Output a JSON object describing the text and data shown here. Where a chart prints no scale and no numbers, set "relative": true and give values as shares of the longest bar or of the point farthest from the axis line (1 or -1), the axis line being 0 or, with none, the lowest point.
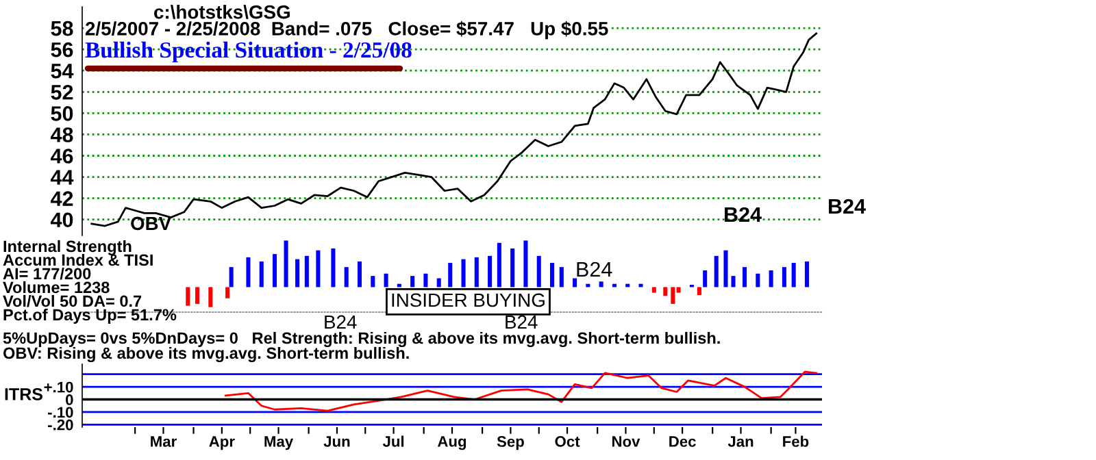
{
  "chart_data": [
    {
      "type": "line",
      "title": "c:\\hotstks\\GSG",
      "subtitle": "2/5/2007 - 2/25/2008  Band= .075   Close= $57.47   Up $0.55",
      "annotations": [
        "Bullish Special Situation - 2/25/08",
        "OBV",
        "B24",
        "B24"
      ],
      "x": [
        "2007-02-06",
        "2007-02-13",
        "2007-02-20",
        "2007-02-24",
        "2007-02-28",
        "2007-03-06",
        "2007-03-12",
        "2007-03-20",
        "2007-03-27",
        "2007-04-01",
        "2007-04-10",
        "2007-04-16",
        "2007-04-23",
        "2007-04-30",
        "2007-05-07",
        "2007-05-14",
        "2007-05-21",
        "2007-05-28",
        "2007-06-04",
        "2007-06-11",
        "2007-06-18",
        "2007-06-25",
        "2007-07-02",
        "2007-07-08",
        "2007-07-15",
        "2007-07-22",
        "2007-07-29",
        "2007-08-05",
        "2007-08-12",
        "2007-08-19",
        "2007-08-26",
        "2007-09-02",
        "2007-09-09",
        "2007-09-16",
        "2007-09-22",
        "2007-09-29",
        "2007-10-06",
        "2007-10-13",
        "2007-10-20",
        "2007-10-27",
        "2007-10-30",
        "2007-11-05",
        "2007-11-10",
        "2007-11-15",
        "2007-11-20",
        "2007-11-27",
        "2007-12-02",
        "2007-12-07",
        "2007-12-13",
        "2007-12-18",
        "2007-12-25",
        "2008-01-01",
        "2008-01-05",
        "2008-01-10",
        "2008-01-14",
        "2008-01-21",
        "2008-01-25",
        "2008-01-30",
        "2008-02-04",
        "2008-02-09",
        "2008-02-13",
        "2008-02-18",
        "2008-02-21",
        "2008-02-25"
      ],
      "series": [
        {
          "color": "#000000",
          "values": [
            39.6,
            39.4,
            39.8,
            41.1,
            40.9,
            40.6,
            40.6,
            40.2,
            40.7,
            41.9,
            41.7,
            41.1,
            41.7,
            42.1,
            41.1,
            41.3,
            41.9,
            41.5,
            42.3,
            42.2,
            43.0,
            42.7,
            42.1,
            43.6,
            44.0,
            44.4,
            44.2,
            44.0,
            42.7,
            42.9,
            41.7,
            42.3,
            43.6,
            45.5,
            46.3,
            47.5,
            46.9,
            47.3,
            48.8,
            49.0,
            50.5,
            51.3,
            52.8,
            52.4,
            51.3,
            53.2,
            51.5,
            50.2,
            49.9,
            51.7,
            51.7,
            53.2,
            54.8,
            53.6,
            52.6,
            51.7,
            50.4,
            52.4,
            52.2,
            52.0,
            54.4,
            55.7,
            56.9,
            57.5
          ]
        }
      ],
      "xlim": [
        "2007-02-01",
        "2008-02-28"
      ],
      "ylim": [
        38.5,
        60
      ],
      "yticks": [
        40,
        42,
        44,
        46,
        48,
        50,
        52,
        54,
        56,
        58
      ],
      "grid": "y",
      "tick_labels": "y"
    },
    {
      "type": "bar",
      "relative": true,
      "tick_labels": false,
      "annotations": [
        "Internal Strength",
        "Accum Index & TISI",
        "AI= 177/200",
        "Volume= 1238",
        "Vol/Vol 50 DA= 0.7",
        "Pct.of Days Up= 51.7%",
        "B24",
        "B24",
        "B24",
        "INSIDER BUYING"
      ],
      "x": [
        "2007-03-29",
        "2007-04-03",
        "2007-04-10",
        "2007-04-19",
        "2007-04-21",
        "2007-04-30",
        "2007-05-07",
        "2007-05-14",
        "2007-05-20",
        "2007-05-26",
        "2007-05-31",
        "2007-06-06",
        "2007-06-14",
        "2007-06-21",
        "2007-06-28",
        "2007-07-05",
        "2007-07-12",
        "2007-07-19",
        "2007-07-26",
        "2007-08-02",
        "2007-08-09",
        "2007-08-15",
        "2007-08-22",
        "2007-08-29",
        "2007-09-05",
        "2007-09-10",
        "2007-09-17",
        "2007-09-24",
        "2007-10-01",
        "2007-10-08",
        "2007-10-13",
        "2007-10-20",
        "2007-10-27",
        "2007-11-03",
        "2007-11-10",
        "2007-11-17",
        "2007-11-24",
        "2007-12-01",
        "2007-12-07",
        "2007-12-11",
        "2007-12-14",
        "2007-12-21",
        "2007-12-25",
        "2007-12-28",
        "2008-01-03",
        "2008-01-08",
        "2008-01-12",
        "2008-01-18",
        "2008-01-25",
        "2008-02-01",
        "2008-02-08",
        "2008-02-13",
        "2008-02-20"
      ],
      "values": [
        -0.4,
        -0.36,
        -0.43,
        -0.24,
        0.43,
        0.64,
        0.55,
        0.71,
        1,
        0.6,
        0.67,
        0.79,
        0.83,
        0.43,
        0.55,
        0.24,
        0.29,
        0.07,
        0.24,
        0.29,
        0.19,
        0.52,
        0.6,
        0.64,
        0.67,
        0.95,
        0.83,
        1,
        0.67,
        0.52,
        0.43,
        0.19,
        0.07,
        0.12,
        0.07,
        0.07,
        0.07,
        -0.12,
        -0.19,
        -0.36,
        -0.12,
        0.05,
        -0.17,
        0.36,
        0.67,
        0.79,
        0.24,
        0.43,
        0.29,
        0.36,
        0.43,
        0.52,
        0.55
      ],
      "colors": [
        "#ff0000",
        "#ff0000",
        "#ff0000",
        "#ff0000",
        "#0000ff",
        "#0000ff",
        "#0000ff",
        "#0000ff",
        "#0000ff",
        "#0000ff",
        "#0000ff",
        "#0000ff",
        "#0000ff",
        "#0000ff",
        "#0000ff",
        "#0000ff",
        "#0000ff",
        "#0000ff",
        "#0000ff",
        "#0000ff",
        "#0000ff",
        "#0000ff",
        "#0000ff",
        "#0000ff",
        "#0000ff",
        "#0000ff",
        "#0000ff",
        "#0000ff",
        "#0000ff",
        "#0000ff",
        "#0000ff",
        "#0000ff",
        "#0000ff",
        "#0000ff",
        "#0000ff",
        "#0000ff",
        "#0000ff",
        "#ff0000",
        "#ff0000",
        "#ff0000",
        "#ff0000",
        "#0000ff",
        "#ff0000",
        "#0000ff",
        "#0000ff",
        "#0000ff",
        "#0000ff",
        "#0000ff",
        "#0000ff",
        "#0000ff",
        "#0000ff",
        "#0000ff",
        "#0000ff"
      ],
      "xlim": [
        "2007-02-01",
        "2008-02-28"
      ]
    },
    {
      "type": "line",
      "ylabel": "ITRS",
      "annotations": [
        "5%UpDays= 0vs 5%DnDays= 0   Rel Strength: Rising & above its mvg.avg. Short-term bullish.",
        "OBV: Rising & above its mvg.avg. Short-term bullish."
      ],
      "x": [
        "2007-04-18",
        "2007-04-30",
        "2007-05-07",
        "2007-05-14",
        "2007-05-28",
        "2007-06-11",
        "2007-06-25",
        "2007-07-08",
        "2007-07-20",
        "2007-08-03",
        "2007-08-17",
        "2007-08-28",
        "2007-09-11",
        "2007-09-25",
        "2007-10-06",
        "2007-10-13",
        "2007-10-20",
        "2007-10-29",
        "2007-11-05",
        "2007-11-17",
        "2007-11-28",
        "2007-12-05",
        "2007-12-13",
        "2007-12-19",
        "2008-01-02",
        "2008-01-08",
        "2008-01-18",
        "2008-01-27",
        "2008-02-06",
        "2008-02-10",
        "2008-02-19",
        "2008-02-25"
      ],
      "series": [
        {
          "color": "#ff0000",
          "values": [
            0.03,
            0.05,
            -0.05,
            -0.08,
            -0.07,
            -0.09,
            -0.04,
            -0.01,
            0.02,
            0.07,
            0.02,
            0,
            0.07,
            0.08,
            0.04,
            -0.02,
            0.12,
            0.09,
            0.21,
            0.17,
            0.19,
            0.09,
            0.06,
            0.15,
            0.11,
            0.17,
            0.1,
            0.01,
            0.02,
            0.08,
            0.22,
            0.21
          ]
        }
      ],
      "xlim": [
        "2007-02-01",
        "2008-02-28"
      ],
      "ylim": [
        -0.22,
        0.28
      ],
      "yticks": [
        {
          "value": -0.2,
          "label": "-.20"
        },
        {
          "value": -0.1,
          "label": "-.10"
        },
        0,
        {
          "value": 0.1,
          "label": "+.10"
        },
        {
          "value": 0.2,
          "label": null
        }
      ],
      "xticks": [
        {
          "value": "2007-03-01",
          "label": null
        },
        {
          "value": "2007-03-16",
          "label": "Mar"
        },
        {
          "value": "2007-04-01",
          "label": null
        },
        {
          "value": "2007-04-16",
          "label": "Apr"
        },
        {
          "value": "2007-05-01",
          "label": null
        },
        {
          "value": "2007-05-16",
          "label": "May"
        },
        {
          "value": "2007-06-01",
          "label": null
        },
        {
          "value": "2007-06-16",
          "label": "Jun"
        },
        {
          "value": "2007-07-01",
          "label": null
        },
        {
          "value": "2007-07-16",
          "label": "Jul"
        },
        {
          "value": "2007-08-01",
          "label": null
        },
        {
          "value": "2007-08-16",
          "label": "Aug"
        },
        {
          "value": "2007-09-01",
          "label": null
        },
        {
          "value": "2007-09-16",
          "label": "Sep"
        },
        {
          "value": "2007-10-01",
          "label": null
        },
        {
          "value": "2007-10-16",
          "label": "Oct"
        },
        {
          "value": "2007-11-01",
          "label": null
        },
        {
          "value": "2007-11-16",
          "label": "Nov"
        },
        {
          "value": "2007-12-01",
          "label": null
        },
        {
          "value": "2007-12-16",
          "label": "Dec"
        },
        {
          "value": "2008-01-01",
          "label": null
        },
        {
          "value": "2008-01-16",
          "label": "Jan"
        },
        {
          "value": "2008-02-01",
          "label": null
        },
        {
          "value": "2008-02-14",
          "label": "Feb"
        }
      ],
      "ref_lines": [
        {
          "axis": "y",
          "value": 0,
          "color": "#000000"
        }
      ],
      "grid": "y"
    }
  ]
}
